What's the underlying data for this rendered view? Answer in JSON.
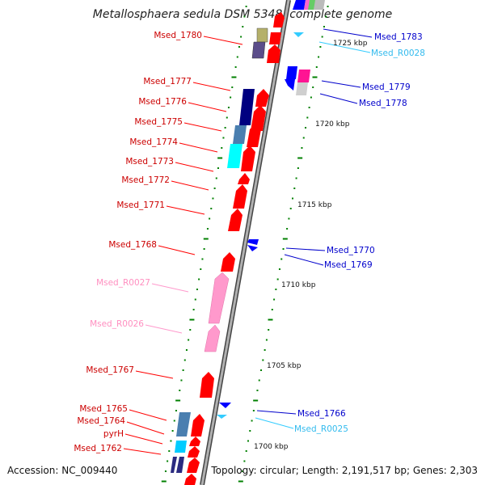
{
  "title": "Metallosphaera sedula DSM 5348, complete genome",
  "footer": {
    "accession": "Accession: NC_009440",
    "summary": "Topology: circular; Length: 2,191,517 bp; Genes: 2,303"
  },
  "colors": {
    "forward_cds": "#ff0000",
    "reverse_cds": "#0000ff",
    "forward_rna": "#ff99cc",
    "reverse_rna": "#33ccff",
    "backbone": "#888888",
    "ticks": "#008000"
  },
  "scale_labels": [
    "1725 kbp",
    "1720 kbp",
    "1715 kbp",
    "1710 kbp",
    "1705 kbp",
    "1700 kbp"
  ],
  "left_labels": [
    {
      "text": "Msed_1780",
      "kind": "cds"
    },
    {
      "text": "Msed_1777",
      "kind": "cds"
    },
    {
      "text": "Msed_1776",
      "kind": "cds"
    },
    {
      "text": "Msed_1775",
      "kind": "cds"
    },
    {
      "text": "Msed_1774",
      "kind": "cds"
    },
    {
      "text": "Msed_1773",
      "kind": "cds"
    },
    {
      "text": "Msed_1772",
      "kind": "cds"
    },
    {
      "text": "Msed_1771",
      "kind": "cds"
    },
    {
      "text": "Msed_1768",
      "kind": "cds"
    },
    {
      "text": "Msed_R0027",
      "kind": "rna"
    },
    {
      "text": "Msed_R0026",
      "kind": "rna"
    },
    {
      "text": "Msed_1767",
      "kind": "cds"
    },
    {
      "text": "Msed_1765",
      "kind": "cds"
    },
    {
      "text": "Msed_1764",
      "kind": "cds"
    },
    {
      "text": "pyrH",
      "kind": "cds"
    },
    {
      "text": "Msed_1762",
      "kind": "cds"
    }
  ],
  "right_labels": [
    {
      "text": "Msed_1783",
      "kind": "cds"
    },
    {
      "text": "Msed_R0028",
      "kind": "rna"
    },
    {
      "text": "Msed_1779",
      "kind": "cds"
    },
    {
      "text": "Msed_1778",
      "kind": "cds"
    },
    {
      "text": "Msed_1770",
      "kind": "cds"
    },
    {
      "text": "Msed_1769",
      "kind": "cds"
    },
    {
      "text": "Msed_1766",
      "kind": "cds"
    },
    {
      "text": "Msed_R0025",
      "kind": "rna"
    }
  ]
}
